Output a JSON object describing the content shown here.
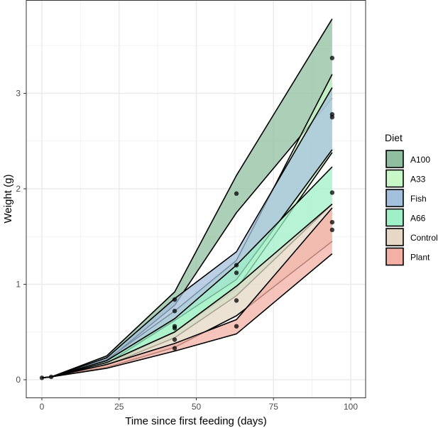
{
  "chart_data": {
    "type": "area",
    "title": "",
    "xlabel": "Time since first feeding (days)",
    "ylabel": "Weight (g)",
    "xlim": [
      -3,
      101
    ],
    "ylim": [
      -0.18,
      3.98
    ],
    "xticks": [
      0,
      25,
      50,
      75,
      100
    ],
    "xtick_labels": [
      "0",
      "25",
      "50",
      "75",
      "100"
    ],
    "yticks": [
      0,
      1,
      2,
      3
    ],
    "ytick_labels": [
      "0",
      "1",
      "2",
      "3"
    ],
    "grid": true,
    "legend": {
      "title": "Diet",
      "position": "right"
    },
    "x": [
      0,
      3,
      21,
      43,
      63,
      94
    ],
    "series": [
      {
        "name": "A100",
        "color": "#8fbf9f",
        "ymin": [
          0.02,
          0.03,
          0.2,
          0.78,
          1.75,
          2.95
        ],
        "ymax": [
          0.02,
          0.03,
          0.25,
          0.92,
          2.14,
          3.78
        ],
        "points": [
          {
            "x": 0,
            "y": 0.02
          },
          {
            "x": 3,
            "y": 0.03
          },
          {
            "x": 43,
            "y": 0.84
          },
          {
            "x": 63,
            "y": 1.95
          },
          {
            "x": 94,
            "y": 3.37
          }
        ]
      },
      {
        "name": "A33",
        "color": "#c8f7c8",
        "ymin": [
          0.02,
          0.03,
          0.16,
          0.5,
          0.95,
          2.38
        ],
        "ymax": [
          0.02,
          0.03,
          0.21,
          0.72,
          1.25,
          3.2
        ],
        "points": []
      },
      {
        "name": "Fish",
        "color": "#a4c0dc",
        "ymin": [
          0.02,
          0.03,
          0.17,
          0.62,
          1.05,
          2.41
        ],
        "ymax": [
          0.02,
          0.03,
          0.23,
          0.85,
          1.34,
          3.06
        ],
        "points": [
          {
            "x": 43,
            "y": 0.72
          },
          {
            "x": 63,
            "y": 1.2
          },
          {
            "x": 94,
            "y": 2.78
          },
          {
            "x": 94,
            "y": 2.75
          }
        ]
      },
      {
        "name": "A66",
        "color": "#9ff0c8",
        "ymin": [
          0.02,
          0.03,
          0.15,
          0.44,
          0.88,
          1.84
        ],
        "ymax": [
          0.02,
          0.03,
          0.2,
          0.64,
          1.2,
          2.23
        ],
        "points": [
          {
            "x": 43,
            "y": 0.56
          },
          {
            "x": 43,
            "y": 0.54
          },
          {
            "x": 63,
            "y": 1.12
          },
          {
            "x": 94,
            "y": 1.96
          }
        ]
      },
      {
        "name": "Control",
        "color": "#e6d8c4",
        "ymin": [
          0.02,
          0.03,
          0.13,
          0.34,
          0.67,
          1.45
        ],
        "ymax": [
          0.02,
          0.03,
          0.18,
          0.5,
          0.98,
          1.84
        ],
        "points": [
          {
            "x": 43,
            "y": 0.42
          },
          {
            "x": 63,
            "y": 0.83
          },
          {
            "x": 94,
            "y": 1.65
          }
        ]
      },
      {
        "name": "Plant",
        "color": "#f4b0a4",
        "ymin": [
          0.02,
          0.03,
          0.12,
          0.3,
          0.48,
          1.32
        ],
        "ymax": [
          0.02,
          0.03,
          0.16,
          0.38,
          0.63,
          1.8
        ],
        "points": [
          {
            "x": 43,
            "y": 0.33
          },
          {
            "x": 63,
            "y": 0.56
          },
          {
            "x": 94,
            "y": 1.57
          }
        ]
      }
    ]
  }
}
